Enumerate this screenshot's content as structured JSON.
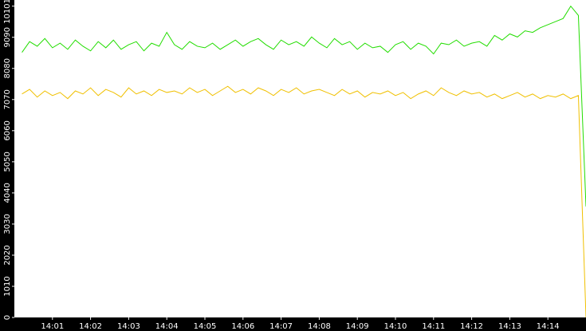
{
  "chart_data": {
    "type": "line",
    "x": [
      840.2,
      840.4,
      840.6,
      840.8,
      841,
      841.2,
      841.4,
      841.6,
      841.8,
      842,
      842.2,
      842.4,
      842.6,
      842.8,
      843,
      843.2,
      843.4,
      843.6,
      843.8,
      844,
      844.2,
      844.4,
      844.6,
      844.8,
      845,
      845.2,
      845.4,
      845.6,
      845.8,
      846,
      846.2,
      846.4,
      846.6,
      846.8,
      847,
      847.2,
      847.4,
      847.6,
      847.8,
      848,
      848.2,
      848.4,
      848.6,
      848.8,
      849,
      849.2,
      849.4,
      849.6,
      849.8,
      850,
      850.2,
      850.4,
      850.6,
      850.8,
      851,
      851.2,
      851.4,
      851.6,
      851.8,
      852,
      852.2,
      852.4,
      852.6,
      852.8,
      853,
      853.2,
      853.4,
      853.6,
      853.8,
      854,
      854.2,
      854.4,
      854.6,
      854.8,
      855
    ],
    "series": [
      {
        "color": "#22dd00",
        "values": [
          8600,
          8950,
          8800,
          9050,
          8750,
          8900,
          8700,
          9000,
          8800,
          8650,
          8950,
          8750,
          9000,
          8700,
          8850,
          8950,
          8650,
          8900,
          8800,
          9250,
          8850,
          8700,
          8950,
          8800,
          8750,
          8900,
          8700,
          8850,
          9000,
          8800,
          8950,
          9050,
          8850,
          8700,
          9000,
          8850,
          8950,
          8800,
          9100,
          8900,
          8750,
          9050,
          8850,
          8950,
          8700,
          8900,
          8750,
          8800,
          8600,
          8850,
          8950,
          8700,
          8900,
          8800,
          8550,
          8900,
          8850,
          9000,
          8800,
          8900,
          8950,
          8800,
          9150,
          9000,
          9200,
          9100,
          9300,
          9250,
          9400,
          9500,
          9600,
          9700,
          10100,
          9800,
          3600
        ]
      },
      {
        "color": "#f0c000",
        "values": [
          7250,
          7400,
          7150,
          7350,
          7200,
          7300,
          7100,
          7350,
          7250,
          7450,
          7200,
          7400,
          7300,
          7150,
          7450,
          7250,
          7350,
          7200,
          7400,
          7300,
          7350,
          7250,
          7450,
          7300,
          7400,
          7200,
          7350,
          7500,
          7300,
          7400,
          7250,
          7450,
          7350,
          7200,
          7400,
          7300,
          7450,
          7250,
          7350,
          7400,
          7300,
          7200,
          7400,
          7250,
          7350,
          7150,
          7300,
          7250,
          7350,
          7200,
          7300,
          7100,
          7250,
          7350,
          7200,
          7450,
          7300,
          7200,
          7350,
          7250,
          7300,
          7150,
          7250,
          7100,
          7200,
          7300,
          7150,
          7250,
          7100,
          7200,
          7150,
          7250,
          7100,
          7200,
          0
        ]
      }
    ],
    "xlim": [
      840,
      855
    ],
    "xticks": [
      {
        "value": 841,
        "label": "14:01"
      },
      {
        "value": 842,
        "label": "14:02"
      },
      {
        "value": 843,
        "label": "14:03"
      },
      {
        "value": 844,
        "label": "14:04"
      },
      {
        "value": 845,
        "label": "14:05"
      },
      {
        "value": 846,
        "label": "14:06"
      },
      {
        "value": 847,
        "label": "14:07"
      },
      {
        "value": 848,
        "label": "14:08"
      },
      {
        "value": 849,
        "label": "14:09"
      },
      {
        "value": 850,
        "label": "14:10"
      },
      {
        "value": 851,
        "label": "14:11"
      },
      {
        "value": 852,
        "label": "14:12"
      },
      {
        "value": 853,
        "label": "14:13"
      },
      {
        "value": 854,
        "label": "14:14"
      }
    ],
    "ylim": [
      0,
      10300
    ],
    "yticks": [
      0,
      1010,
      2020,
      3030,
      4040,
      5050,
      6060,
      7070,
      8080,
      9090,
      10101
    ],
    "grid": false
  }
}
